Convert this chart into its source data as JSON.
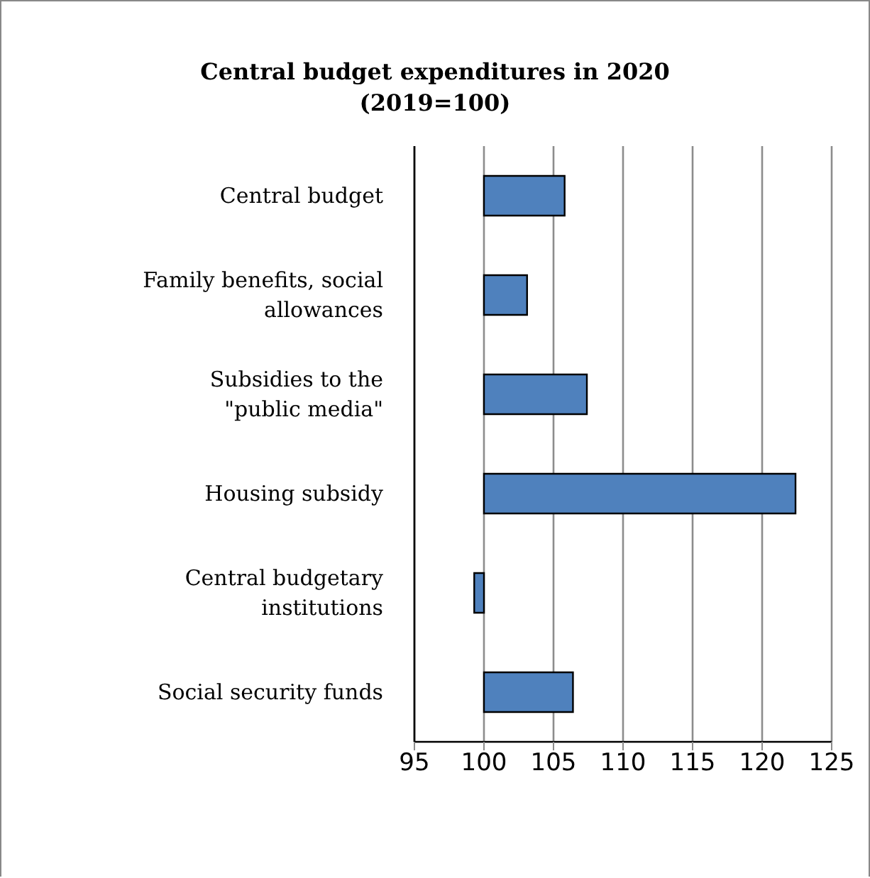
{
  "chart_data": {
    "type": "bar",
    "orientation": "horizontal",
    "title": "Central budget expenditures in 2020\n(2019=100)",
    "categories": [
      "Central budget",
      "Family benefits, social allowances",
      "Subsidies to the \"public media\"",
      "Housing subsidy",
      "Central budgetary institutions",
      "Social security funds"
    ],
    "base": [
      100,
      100,
      100,
      100,
      100,
      100
    ],
    "values": [
      5.8,
      3.1,
      7.4,
      22.4,
      -0.7,
      6.4
    ],
    "color": "#4f81bd",
    "xlim": [
      95,
      125
    ],
    "xticks": [
      95,
      100,
      105,
      110,
      115,
      120,
      125
    ],
    "grid": "x"
  }
}
